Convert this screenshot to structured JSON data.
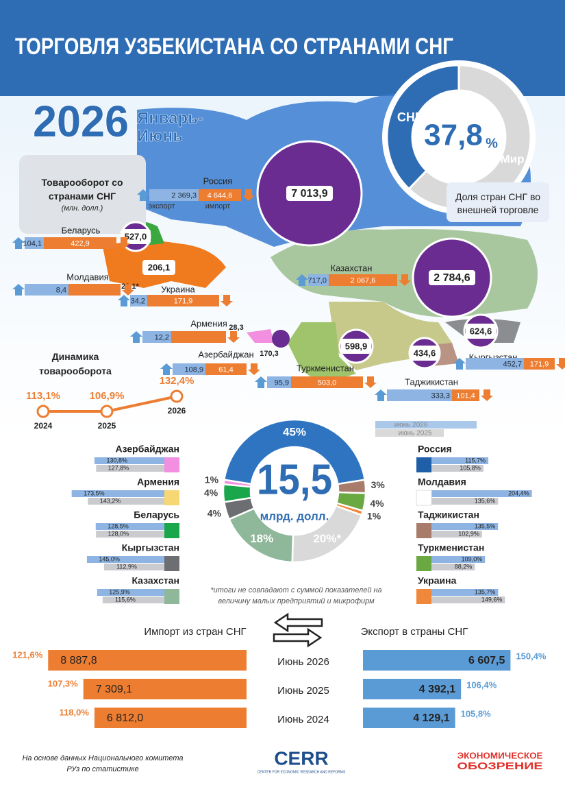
{
  "header": {
    "title": "ТОРГОВЛЯ УЗБЕКИСТАНА СО СТРАНАМИ СНГ",
    "year": "2026",
    "period": "Январь-Июнь"
  },
  "share": {
    "cis_label": "СНГ",
    "value": "37,8",
    "unit": "%",
    "world_label": "Мир",
    "caption": "Доля стран СНГ во внешней торговле",
    "cis_color": "#2e6db4",
    "world_color": "#d9d9d9"
  },
  "turnover_box": {
    "title": "Товарооборот со странами СНГ",
    "unit": "(млн. долл.)",
    "export_label": "экспорт",
    "import_label": "импорт"
  },
  "countries": [
    {
      "name": "Россия",
      "total": "7 013,9",
      "export": "2 369,3",
      "import": "4 644,6"
    },
    {
      "name": "Беларусь",
      "total": "527,0",
      "export": "104,1",
      "import": "422,9"
    },
    {
      "name": "Молдавия",
      "total": "23,1*",
      "export": "8,4"
    },
    {
      "name": "Украина",
      "total": "206,1",
      "export": "34,2",
      "import": "171,9"
    },
    {
      "name": "Армения",
      "total": "28,3",
      "export": "12,2"
    },
    {
      "name": "Азербайджан",
      "total": "170,3",
      "export": "108,9",
      "import": "61,4"
    },
    {
      "name": "Казахстан",
      "total": "2 784,6",
      "export": "717,0",
      "import": "2 067,6"
    },
    {
      "name": "Туркменистан",
      "total": "598,9",
      "export": "95,9",
      "import": "503,0"
    },
    {
      "name": "Таджикистан",
      "total": "434,6",
      "export": "333,3",
      "import": "101,4"
    },
    {
      "name": "Кыргызстан",
      "total": "624,6",
      "export": "452,7",
      "import": "171,9"
    }
  ],
  "dynamics": {
    "title": "Динамика товарооборота",
    "points": [
      {
        "year": "2024",
        "value": "113,1%"
      },
      {
        "year": "2025",
        "value": "106,9%"
      },
      {
        "year": "2026",
        "value": "132,4%"
      }
    ]
  },
  "donut": {
    "center_value": "15,5",
    "center_unit": "млрд. долл.",
    "segments": [
      {
        "label": "45%",
        "color": "#2e74c0"
      },
      {
        "label": "3%",
        "color": "#a87b6a"
      },
      {
        "label": "4%",
        "color": "#6aa842"
      },
      {
        "label": "1%",
        "color": "#f0883a"
      },
      {
        "label": "20%*",
        "color": "#d9d9d9"
      },
      {
        "label": "18%",
        "color": "#8fb79a"
      },
      {
        "label": "4%",
        "color": "#6d6e71"
      },
      {
        "label": "4%",
        "color": "#1aa64a"
      },
      {
        "label": "1%",
        "color": "#f28fe0"
      }
    ]
  },
  "growth": {
    "legend": [
      "июнь 2026",
      "июнь 2025"
    ],
    "left": [
      {
        "name": "Азербайджан",
        "v2026": "130,8%",
        "v2025": "127,8%",
        "color": "#f28fe0"
      },
      {
        "name": "Армения",
        "v2026": "173,5%",
        "v2025": "143,2%",
        "color": "#f7d774"
      },
      {
        "name": "Беларусь",
        "v2026": "128,5%",
        "v2025": "128,0%",
        "color": "#1aa64a"
      },
      {
        "name": "Кыргызстан",
        "v2026": "145,0%",
        "v2025": "112,9%",
        "color": "#6d6e71"
      },
      {
        "name": "Казахстан",
        "v2026": "125,9%",
        "v2025": "115,6%",
        "color": "#8fb79a"
      }
    ],
    "right": [
      {
        "name": "Россия",
        "v2026": "115,7%",
        "v2025": "105,8%",
        "color": "#1f5fa8"
      },
      {
        "name": "Молдавия",
        "v2026": "204,4%",
        "v2025": "135,6%",
        "color": "#ffffff"
      },
      {
        "name": "Таджикистан",
        "v2026": "135,5%",
        "v2025": "102,9%",
        "color": "#a87b6a"
      },
      {
        "name": "Туркменистан",
        "v2026": "109,0%",
        "v2025": "88,2%",
        "color": "#6aa842"
      },
      {
        "name": "Украина",
        "v2026": "135,7%",
        "v2025": "149,6%",
        "color": "#f0883a"
      }
    ]
  },
  "footnote": "*итоги не совпадают с суммой показателей на величину малых предприятий и микрофирм",
  "trade": {
    "import_title": "Импорт из стран СНГ",
    "export_title": "Экспорт в страны СНГ",
    "rows": [
      {
        "period": "Июнь 2026",
        "import": "8 887,8",
        "import_growth": "121,6%",
        "export": "6 607,5",
        "export_growth": "150,4%"
      },
      {
        "period": "Июнь 2025",
        "import": "7 309,1",
        "import_growth": "107,3%",
        "export": "4 392,1",
        "export_growth": "106,4%"
      },
      {
        "period": "Июнь 2024",
        "import": "6 812,0",
        "import_growth": "118,0%",
        "export": "4 129,1",
        "export_growth": "105,8%"
      }
    ]
  },
  "footer": {
    "source": "На основе данных Национального комитета РУз по статистике",
    "logo1": "CERR",
    "logo1_sub": "CENTER FOR ECONOMIC RESEARCH AND REFORMS",
    "logo2_line1": "ЭКОНОМИЧЕСКОЕ",
    "logo2_line2": "ОБОЗРЕНИЕ"
  }
}
